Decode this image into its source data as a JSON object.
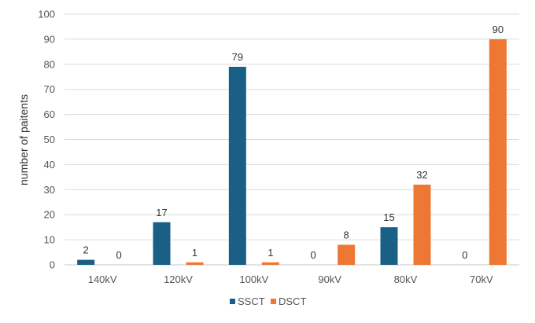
{
  "chart_data": {
    "type": "bar",
    "categories": [
      "140kV",
      "120kV",
      "100kV",
      "90kV",
      "80kV",
      "70kV"
    ],
    "series": [
      {
        "name": "SSCT",
        "color": "#1a5f85",
        "values": [
          2,
          17,
          79,
          0,
          15,
          0
        ]
      },
      {
        "name": "DSCT",
        "color": "#ee7733",
        "values": [
          0,
          1,
          1,
          8,
          32,
          90
        ]
      }
    ],
    "title": "",
    "xlabel": "",
    "ylabel": "number of paitents",
    "ylim": [
      0,
      100
    ],
    "yticks": [
      0,
      10,
      20,
      30,
      40,
      50,
      60,
      70,
      80,
      90,
      100
    ],
    "grid": true,
    "data_labels": true,
    "legend_position": "bottom"
  }
}
